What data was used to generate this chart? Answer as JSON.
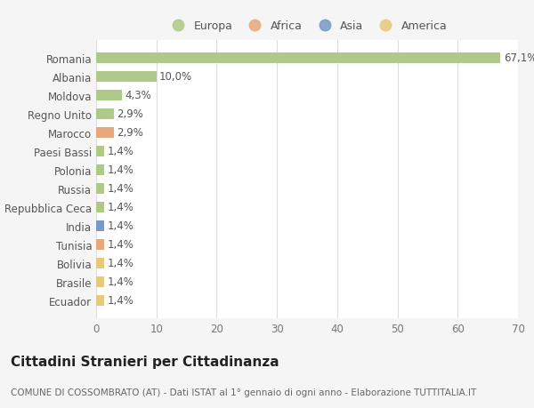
{
  "categories": [
    "Romania",
    "Albania",
    "Moldova",
    "Regno Unito",
    "Marocco",
    "Paesi Bassi",
    "Polonia",
    "Russia",
    "Repubblica Ceca",
    "India",
    "Tunisia",
    "Bolivia",
    "Brasile",
    "Ecuador"
  ],
  "values": [
    67.1,
    10.0,
    4.3,
    2.9,
    2.9,
    1.4,
    1.4,
    1.4,
    1.4,
    1.4,
    1.4,
    1.4,
    1.4,
    1.4
  ],
  "labels": [
    "67,1%",
    "10,0%",
    "4,3%",
    "2,9%",
    "2,9%",
    "1,4%",
    "1,4%",
    "1,4%",
    "1,4%",
    "1,4%",
    "1,4%",
    "1,4%",
    "1,4%",
    "1,4%"
  ],
  "bar_colors": [
    "#aec98a",
    "#aec98a",
    "#aec98a",
    "#aec98a",
    "#e8a87c",
    "#aec98a",
    "#aec98a",
    "#aec98a",
    "#aec98a",
    "#7899c8",
    "#e8a87c",
    "#e8c97c",
    "#e8c97c",
    "#e8c97c"
  ],
  "legend_labels": [
    "Europa",
    "Africa",
    "Asia",
    "America"
  ],
  "legend_colors": [
    "#aec98a",
    "#e8a87c",
    "#7899c8",
    "#e8c97c"
  ],
  "title": "Cittadini Stranieri per Cittadinanza",
  "subtitle": "COMUNE DI COSSOMBRATO (AT) - Dati ISTAT al 1° gennaio di ogni anno - Elaborazione TUTTITALIA.IT",
  "xlim": [
    0,
    70
  ],
  "xticks": [
    0,
    10,
    20,
    30,
    40,
    50,
    60,
    70
  ],
  "background_color": "#f5f5f5",
  "plot_bg_color": "#ffffff",
  "grid_color": "#dddddd",
  "title_fontsize": 11,
  "subtitle_fontsize": 7.5,
  "label_fontsize": 8.5,
  "tick_fontsize": 8.5,
  "legend_fontsize": 9
}
